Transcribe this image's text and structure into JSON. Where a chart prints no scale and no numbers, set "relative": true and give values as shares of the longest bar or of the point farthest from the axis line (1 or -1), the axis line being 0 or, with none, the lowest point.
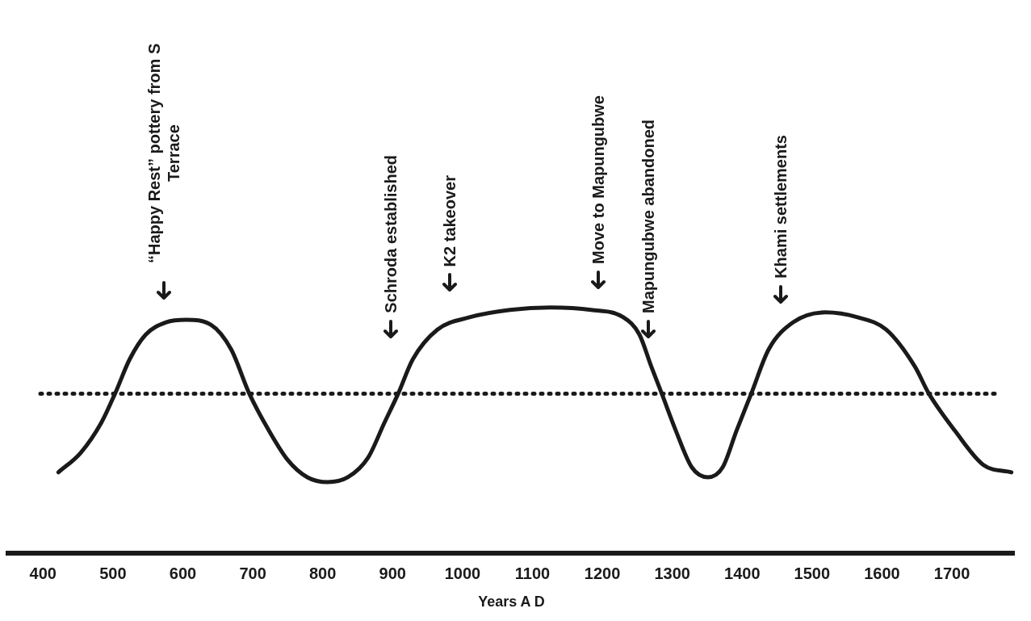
{
  "chart_data": {
    "type": "line",
    "relative": true,
    "xlabel": "Years A D",
    "x": [
      422,
      454,
      483,
      503,
      524,
      547,
      576,
      605,
      640,
      669,
      695,
      721,
      750,
      778,
      807,
      836,
      865,
      888,
      908,
      929,
      964,
      1010,
      1068,
      1126,
      1184,
      1230,
      1253,
      1270,
      1285,
      1305,
      1328,
      1351,
      1372,
      1392,
      1413,
      1438,
      1473,
      1519,
      1565,
      1606,
      1647,
      1667,
      1704,
      1745,
      1785
    ],
    "series": [
      {
        "color": "#1a1a1a",
        "values": [
          0.33,
          0.41,
          0.53,
          0.65,
          0.79,
          0.89,
          0.94,
          0.95,
          0.93,
          0.83,
          0.65,
          0.51,
          0.38,
          0.31,
          0.29,
          0.31,
          0.39,
          0.53,
          0.65,
          0.79,
          0.91,
          0.96,
          0.99,
          1,
          0.99,
          0.96,
          0.89,
          0.76,
          0.65,
          0.5,
          0.35,
          0.31,
          0.35,
          0.5,
          0.65,
          0.83,
          0.94,
          0.98,
          0.96,
          0.91,
          0.76,
          0.65,
          0.5,
          0.36,
          0.33
        ]
      }
    ],
    "xlim": [
      350,
      1790
    ],
    "xticks": [
      400,
      500,
      600,
      700,
      800,
      900,
      1000,
      1100,
      1200,
      1300,
      1400,
      1500,
      1600,
      1700
    ],
    "marker": "none",
    "ref_lines": [
      {
        "axis": "y",
        "value": 0.65,
        "line_style": "dotted",
        "color": "#1a1a1a"
      }
    ],
    "annotations": [
      "“Happy Rest” pottery from S Terrace",
      "Schroda established",
      "K2 takeover",
      "Move to Mapungubwe",
      "Mapungubwe abandoned",
      "Khami settlements"
    ]
  }
}
